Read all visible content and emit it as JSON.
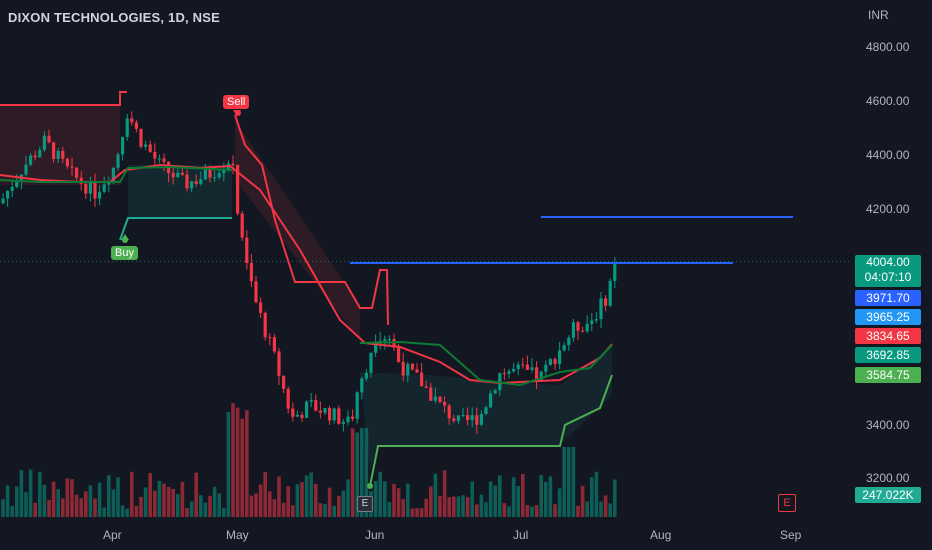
{
  "header": {
    "symbol_title": "DIXON TECHNOLOGIES, 1D, NSE",
    "currency": "INR"
  },
  "price_axis": {
    "ticks": [
      "4800.00",
      "4600.00",
      "4400.00",
      "4200.00",
      "3400.00",
      "3200.00"
    ]
  },
  "time_axis": {
    "ticks": [
      "Apr",
      "May",
      "Jun",
      "Jul",
      "Aug",
      "Sep"
    ]
  },
  "price_labels": {
    "last_price": "4004.00",
    "countdown": "04:07:10",
    "blue_level_1": "3971.70",
    "blue_level_2": "3965.25",
    "red_level": "3834.65",
    "green_level_1": "3692.85",
    "green_level_2": "3584.75",
    "volume": "247.022K"
  },
  "signals": {
    "buy_label": "Buy",
    "sell_label": "Sell"
  },
  "events": {
    "earnings_label": "E"
  },
  "colors": {
    "background": "#131722",
    "up": "#089981",
    "down": "#f23645",
    "red_line": "#f23645",
    "green_line": "#22ab94",
    "blue_line": "#2962ff"
  },
  "chart_data": {
    "type": "candlestick",
    "scale": {
      "price_min": 3200,
      "price_max": 4800
    },
    "horizontal_levels": [
      4170,
      3965
    ],
    "trailing_stop_segments": [
      {
        "direction": "short",
        "points": [
          [
            "start",
            4590
          ],
          [
            "Apr",
            4590
          ]
        ]
      },
      {
        "direction": "long",
        "points": [
          [
            "Apr",
            4170
          ],
          [
            "Apr-May",
            4170
          ]
        ]
      },
      {
        "direction": "short",
        "points": [
          [
            "May",
            4540
          ],
          [
            "Jun",
            3970
          ]
        ]
      },
      {
        "direction": "long",
        "points": [
          [
            "Jun",
            3280
          ],
          [
            "Jul",
            3320
          ],
          [
            "latest",
            3584.75
          ]
        ]
      }
    ],
    "last_price": 4004.0,
    "volume_last": "247.022K"
  }
}
